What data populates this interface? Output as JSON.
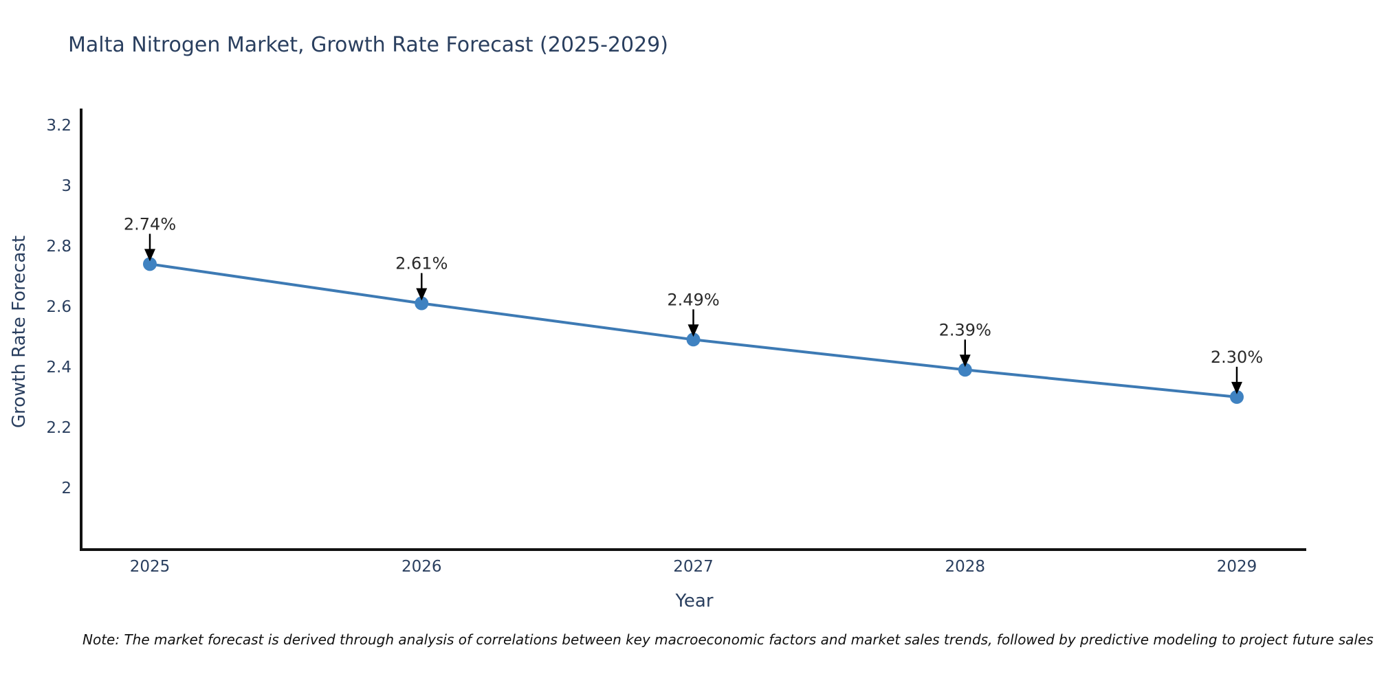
{
  "header": {
    "title": "Malta Nitrogen Market, Growth Rate Forecast (2025-2029)"
  },
  "footer": {
    "note": "Note: The market forecast is derived through analysis of correlations between key macroeconomic factors and market sales trends, followed by predictive modeling to project future sales"
  },
  "chart_data": {
    "type": "line",
    "title": "Malta Nitrogen Market, Growth Rate Forecast (2025-2029)",
    "categories": [
      "2025",
      "2026",
      "2027",
      "2028",
      "2029"
    ],
    "series": [
      {
        "name": "Growth Rate Forecast",
        "values": [
          2.74,
          2.61,
          2.49,
          2.39,
          2.3
        ]
      }
    ],
    "point_labels": [
      "2.74%",
      "2.61%",
      "2.49%",
      "2.39%",
      "2.30%"
    ],
    "xlabel": "Year",
    "ylabel": "Growth Rate Forecast",
    "ylim": [
      1.795,
      3.25
    ],
    "yticks": [
      3.2,
      3,
      2.8,
      2.6,
      2.4,
      2.2,
      2
    ],
    "ytick_labels": [
      "3.2",
      "3",
      "2.8",
      "2.6",
      "2.4",
      "2.2",
      "2"
    ],
    "grid": false,
    "legend": "none",
    "annotations": "value label above each point with downward black arrow",
    "colors": {
      "line": "#3d7ab4",
      "marker": "#3f82c1",
      "axis": "#111111",
      "tick_text": "#2a3f5f",
      "annotation_text": "#2a2a2a",
      "arrow": "#000000",
      "title_text": "#2a3f5f"
    }
  }
}
